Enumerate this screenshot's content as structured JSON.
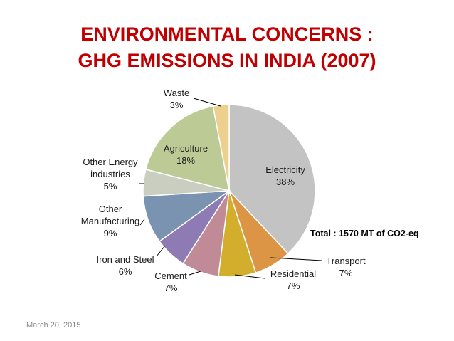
{
  "slide": {
    "title_line1": "ENVIRONMENTAL CONCERNS :",
    "title_line2": "GHG EMISSIONS IN INDIA (2007)",
    "total_note": "Total : 1570 MT of CO2-eq",
    "date": "March 20, 2015"
  },
  "colors": {
    "title": "#c00000"
  },
  "chart_data": {
    "type": "pie",
    "title": "ENVIRONMENTAL CONCERNS : GHG EMISSIONS IN INDIA (2007)",
    "start_angle_deg": 90,
    "direction": "clockwise",
    "slices": [
      {
        "label": "Electricity",
        "value": 38,
        "pct_text": "38%",
        "color": "#c3c3c3"
      },
      {
        "label": "Transport",
        "value": 7,
        "pct_text": "7%",
        "color": "#dc9445"
      },
      {
        "label": "Residential",
        "value": 7,
        "pct_text": "7%",
        "color": "#d2ae2c"
      },
      {
        "label": "Cement",
        "value": 7,
        "pct_text": "7%",
        "color": "#c08b96"
      },
      {
        "label": "Iron and Steel",
        "value": 6,
        "pct_text": "6%",
        "color": "#8e7bb3"
      },
      {
        "label": "Other Manufacturing",
        "value": 9,
        "pct_text": "9%",
        "color": "#7a93b0"
      },
      {
        "label": "Other Energy industries",
        "value": 5,
        "pct_text": "5%",
        "color": "#c9cec0"
      },
      {
        "label": "Agriculture",
        "value": 18,
        "pct_text": "18%",
        "color": "#bccb95"
      },
      {
        "label": "Waste",
        "value": 3,
        "pct_text": "3%",
        "color": "#edd08e"
      }
    ]
  }
}
